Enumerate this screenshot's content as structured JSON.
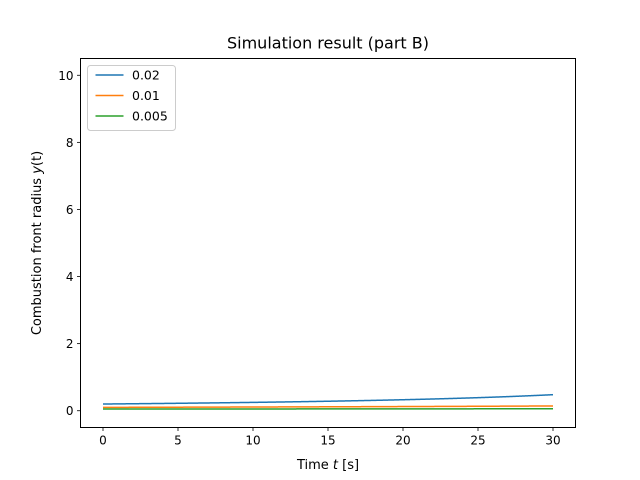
{
  "chart_data": {
    "type": "line",
    "title": "Simulation result (part B)",
    "xlabel_prefix": "Time ",
    "xlabel_var": "t",
    "xlabel_suffix": " [s]",
    "ylabel_prefix": "Combustion front radius ",
    "ylabel_var": "y",
    "ylabel_suffix": "(t)",
    "xlim": [
      -1.5,
      31.5
    ],
    "ylim": [
      -0.5,
      10.5
    ],
    "xticks": [
      0,
      5,
      10,
      15,
      20,
      25,
      30
    ],
    "yticks": [
      0,
      2,
      4,
      6,
      8,
      10
    ],
    "legend_position": "upper-left",
    "t_end": 30,
    "series": [
      {
        "name": "0.02",
        "delta": 0.02,
        "color": "#1f77b4"
      },
      {
        "name": "0.01",
        "delta": 0.01,
        "color": "#ff7f0e"
      },
      {
        "name": "0.005",
        "delta": 0.005,
        "color": "#2ca02c"
      }
    ]
  }
}
